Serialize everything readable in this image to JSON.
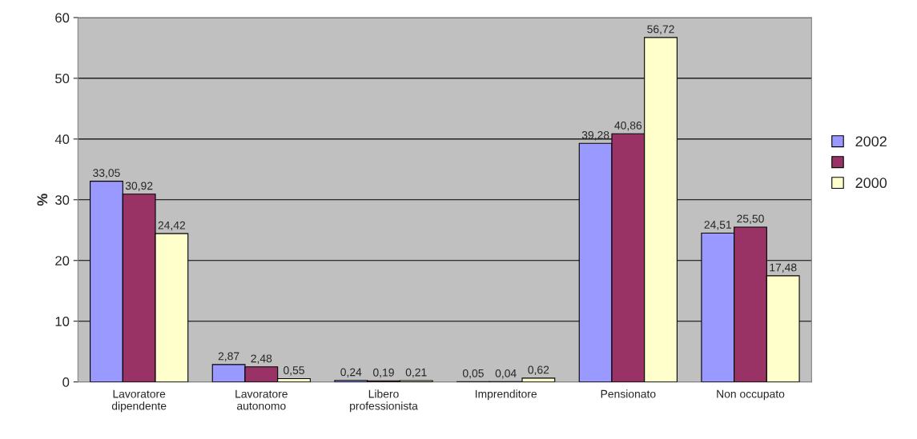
{
  "chart_data": {
    "type": "bar",
    "ylabel": "%",
    "categories": [
      "Lavoratore\ndipendente",
      "Lavoratore\nautonomo",
      "Libero\nprofessionista",
      "Imprenditore",
      "Pensionato",
      "Non occupato"
    ],
    "series": [
      {
        "name": "2002",
        "color": "#9999ff",
        "values": [
          33.05,
          2.87,
          0.24,
          0.05,
          39.28,
          24.51
        ],
        "value_labels": [
          "33,05",
          "2,87",
          "0,24",
          "0,05",
          "39,28",
          "24,51"
        ]
      },
      {
        "color": "#993366",
        "values": [
          30.92,
          2.48,
          0.19,
          0.04,
          40.86,
          25.5
        ],
        "value_labels": [
          "30,92",
          "2,48",
          "0,19",
          "0,04",
          "40,86",
          "25,50"
        ]
      },
      {
        "name": "2000",
        "color": "#ffffcc",
        "values": [
          24.42,
          0.55,
          0.21,
          0.62,
          56.72,
          17.48
        ],
        "value_labels": [
          "24,42",
          "0,55",
          "0,21",
          "0,62",
          "56,72",
          "17,48"
        ]
      }
    ],
    "ylim": [
      0,
      60
    ],
    "yticks": [
      0,
      10,
      20,
      30,
      40,
      50,
      60
    ],
    "grid": "y",
    "legend": "right"
  }
}
